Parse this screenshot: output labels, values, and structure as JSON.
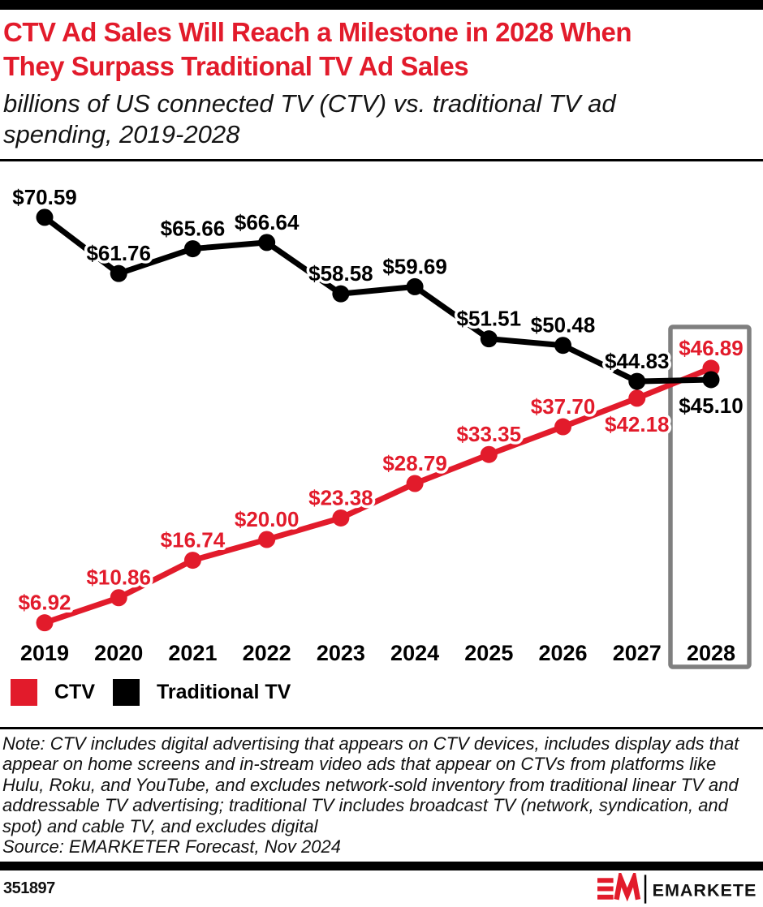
{
  "header": {
    "title_lines": [
      "CTV Ad Sales Will Reach a Milestone in 2028 When",
      "They Surpass Traditional TV Ad Sales"
    ],
    "subtitle_lines": [
      "billions of US connected TV (CTV) vs. traditional TV ad",
      "spending, 2019-2028"
    ]
  },
  "theme": {
    "accent_red": "#e21b2b",
    "text_black": "#000000",
    "highlight_gray": "#7f7f7f"
  },
  "chart_data": {
    "type": "line",
    "title": "CTV Ad Sales Will Reach a Milestone in 2028 When They Surpass Traditional TV Ad Sales",
    "subtitle": "billions of US connected TV (CTV) vs. traditional TV ad spending, 2019-2028",
    "categories": [
      "2019",
      "2020",
      "2021",
      "2022",
      "2023",
      "2024",
      "2025",
      "2026",
      "2027",
      "2028"
    ],
    "value_prefix": "$",
    "unit": "billions of US dollars",
    "ylim": [
      0,
      79
    ],
    "grid": false,
    "legend_position": "bottom-left",
    "highlight_category": "2028",
    "highlight_box_color": "#7f7f7f",
    "series": [
      {
        "name": "CTV",
        "color": "#e21b2b",
        "values": [
          6.92,
          10.86,
          16.74,
          20.0,
          23.38,
          28.79,
          33.35,
          37.7,
          42.18,
          46.89
        ],
        "label_positions": [
          "above",
          "above",
          "above",
          "above",
          "above",
          "above",
          "above",
          "above",
          "below",
          "above"
        ]
      },
      {
        "name": "Traditional TV",
        "color": "#000000",
        "values": [
          70.59,
          61.76,
          65.66,
          66.64,
          58.58,
          59.69,
          51.51,
          50.48,
          44.83,
          45.1
        ],
        "label_positions": [
          "above",
          "above",
          "above",
          "above",
          "above",
          "above",
          "above",
          "above",
          "above",
          "below"
        ]
      }
    ]
  },
  "legend": {
    "items": [
      {
        "label": "CTV",
        "color": "#e21b2b"
      },
      {
        "label": "Traditional TV",
        "color": "#000000"
      }
    ]
  },
  "note": {
    "text": "Note: CTV includes digital advertising that appears on CTV devices, includes display ads that appear on home screens and in-stream video ads that appear on CTVs from platforms like Hulu, Roku, and YouTube, and excludes network-sold inventory from traditional linear TV and addressable TV advertising; traditional TV includes broadcast TV (network, syndication, and spot) and cable TV, and excludes digital",
    "source": "Source: EMARKETER Forecast, Nov 2024"
  },
  "footer": {
    "chart_id": "351897",
    "brand": "EMARKETER"
  }
}
